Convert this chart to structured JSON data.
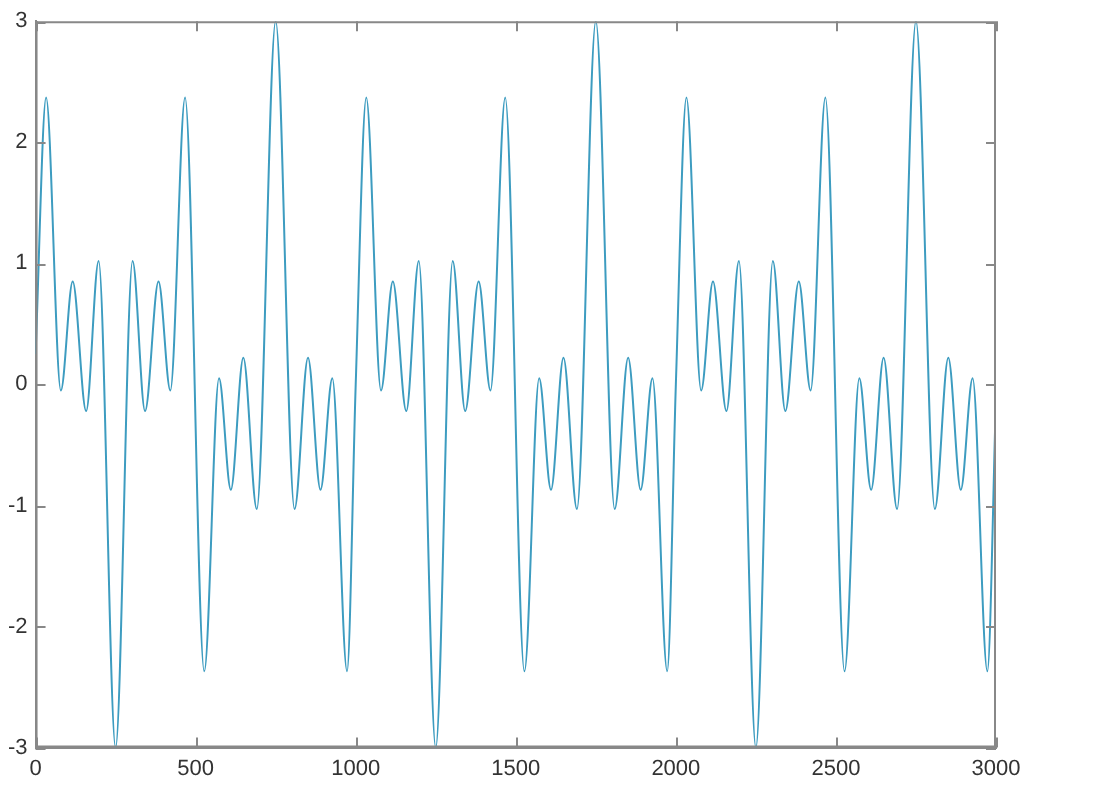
{
  "chart_data": {
    "type": "line",
    "x": [
      0,
      33,
      79,
      116,
      158,
      197,
      250,
      303,
      342,
      384,
      421,
      467,
      527,
      573,
      610,
      649,
      691,
      750,
      809,
      851,
      890,
      927,
      973,
      1000,
      1033,
      1079,
      1116,
      1158,
      1197,
      1250,
      1303,
      1342,
      1384,
      1421,
      1467,
      1527,
      1573,
      1610,
      1649,
      1691,
      1750,
      1809,
      1851,
      1890,
      1927,
      1973,
      2000,
      2033,
      2079,
      2116,
      2158,
      2197,
      2250,
      2303,
      2342,
      2384,
      2421,
      2467,
      2527,
      2573,
      2610,
      2649,
      2691,
      2750,
      2809,
      2851,
      2890,
      2927,
      2973,
      3000
    ],
    "series": [
      {
        "color": "#3d9cc0",
        "values": [
          0.25,
          2.37,
          -0.05,
          0.85,
          -0.22,
          1.02,
          -3,
          1.02,
          -0.22,
          0.85,
          -0.05,
          2.37,
          -2.37,
          0.05,
          -0.87,
          0.22,
          -1.03,
          3,
          -1.03,
          0.22,
          -0.87,
          0.05,
          -2.37,
          0,
          2.37,
          -0.05,
          0.85,
          -0.22,
          1.02,
          -3,
          1.02,
          -0.22,
          0.85,
          -0.05,
          2.37,
          -2.37,
          0.05,
          -0.87,
          0.22,
          -1.03,
          3,
          -1.03,
          0.22,
          -0.87,
          0.05,
          -2.37,
          0,
          2.37,
          -0.05,
          0.85,
          -0.22,
          1.02,
          -3,
          1.02,
          -0.22,
          0.85,
          -0.05,
          2.37,
          -2.37,
          0.05,
          -0.87,
          0.22,
          -1.03,
          3,
          -1.03,
          0.22,
          -0.87,
          0.05,
          -2.37,
          -0.1
        ]
      }
    ],
    "xlim": [
      0,
      3000
    ],
    "xticks": [
      0,
      500,
      1000,
      1500,
      2000,
      2500,
      3000
    ],
    "ylim": [
      -3,
      3
    ],
    "yticks": [
      -3,
      -2,
      -1,
      0,
      1,
      2,
      3
    ],
    "grid": false,
    "legend": false,
    "marker": "none",
    "line_style": "solid"
  }
}
